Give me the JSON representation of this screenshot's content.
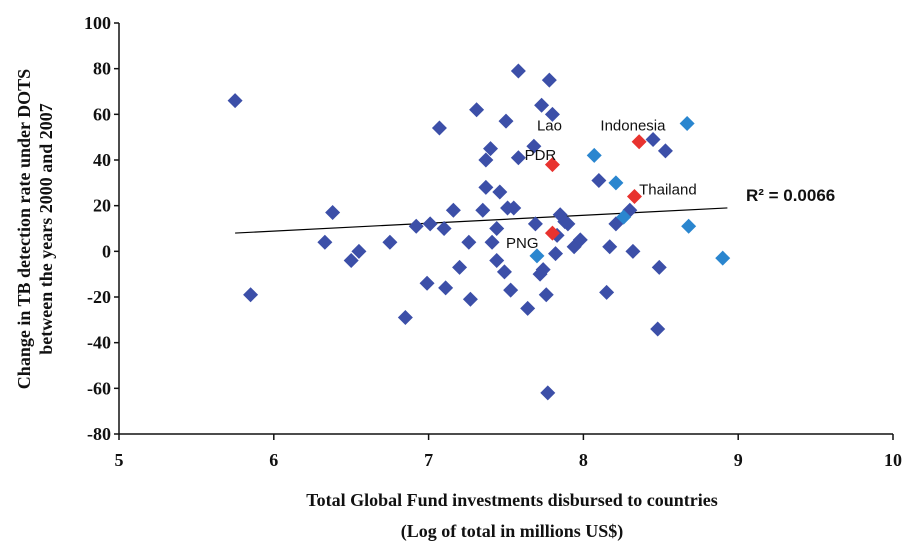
{
  "chart_data": {
    "type": "scatter",
    "xlabel_line1": "Total Global Fund investments disbursed to countries",
    "xlabel_line2": "(Log of total in millions US$)",
    "ylabel_line1": "Change in TB detection rate under DOTS",
    "ylabel_line2": "between the years 2000 and 2007",
    "xlim": [
      5,
      10
    ],
    "ylim": [
      -80,
      100
    ],
    "x_ticks": [
      "5",
      "6",
      "7",
      "8",
      "9",
      "10"
    ],
    "y_ticks": [
      "100",
      "80",
      "60",
      "40",
      "20",
      "0",
      "-20",
      "-40",
      "-60",
      "-80"
    ],
    "grid": false,
    "colors": {
      "points": "#3c4fa8",
      "light_points": "#2a86cf",
      "highlight": "#e8332f",
      "trendline": "#000000"
    },
    "series": [
      {
        "points": [
          [
            5.75,
            66
          ],
          [
            5.85,
            -19
          ],
          [
            6.33,
            4
          ],
          [
            6.38,
            17
          ],
          [
            6.5,
            -4
          ],
          [
            6.55,
            0
          ],
          [
            6.75,
            4
          ],
          [
            6.85,
            -29
          ],
          [
            6.92,
            11
          ],
          [
            6.99,
            -14
          ],
          [
            7.01,
            12
          ],
          [
            7.07,
            54
          ],
          [
            7.11,
            -16
          ],
          [
            7.1,
            10
          ],
          [
            7.16,
            18
          ],
          [
            7.2,
            -7
          ],
          [
            7.26,
            4
          ],
          [
            7.27,
            -21
          ],
          [
            7.31,
            62
          ],
          [
            7.35,
            18
          ],
          [
            7.37,
            28
          ],
          [
            7.37,
            40
          ],
          [
            7.4,
            45
          ],
          [
            7.41,
            4
          ],
          [
            7.44,
            10
          ],
          [
            7.44,
            -4
          ],
          [
            7.46,
            26
          ],
          [
            7.49,
            -9
          ],
          [
            7.5,
            57
          ],
          [
            7.51,
            19
          ],
          [
            7.53,
            -17
          ],
          [
            7.55,
            19
          ],
          [
            7.58,
            79
          ],
          [
            7.58,
            41
          ],
          [
            7.64,
            -25
          ],
          [
            7.68,
            46
          ],
          [
            7.69,
            12
          ],
          [
            7.72,
            -10
          ],
          [
            7.73,
            64
          ],
          [
            7.74,
            -8
          ],
          [
            7.76,
            -19
          ],
          [
            7.78,
            75
          ],
          [
            7.77,
            -62
          ],
          [
            7.8,
            60
          ],
          [
            7.82,
            -1
          ],
          [
            7.83,
            7
          ],
          [
            7.85,
            16
          ],
          [
            7.88,
            13
          ],
          [
            7.9,
            12
          ],
          [
            7.94,
            2
          ],
          [
            7.98,
            5
          ],
          [
            8.1,
            31
          ],
          [
            8.15,
            -18
          ],
          [
            8.17,
            2
          ],
          [
            8.21,
            12
          ],
          [
            8.3,
            18
          ],
          [
            8.32,
            0
          ],
          [
            8.45,
            49
          ],
          [
            8.48,
            -34
          ],
          [
            8.49,
            -7
          ],
          [
            8.53,
            44
          ]
        ]
      },
      {
        "points": [
          [
            7.7,
            -2
          ],
          [
            8.07,
            42
          ],
          [
            8.21,
            30
          ],
          [
            8.26,
            15
          ],
          [
            8.67,
            56
          ],
          [
            8.68,
            11
          ],
          [
            8.9,
            -3
          ]
        ]
      },
      {
        "points": [
          [
            7.8,
            38
          ],
          [
            8.36,
            48
          ],
          [
            8.33,
            24
          ],
          [
            7.8,
            8
          ]
        ]
      }
    ],
    "trendline": {
      "x": [
        5.75,
        8.93
      ],
      "y": [
        8,
        19
      ]
    },
    "annotations": [
      {
        "text": "Lao",
        "x": 7.7,
        "y": 53
      },
      {
        "text": "PDR",
        "x": 7.62,
        "y": 40
      },
      {
        "text": "Indonesia",
        "x": 8.11,
        "y": 53
      },
      {
        "text": "Thailand",
        "x": 8.36,
        "y": 25
      },
      {
        "text": "PNG",
        "x": 7.5,
        "y": 1.5
      }
    ],
    "r2_label": "R² = 0.0066",
    "r2_position": {
      "x": 9.05,
      "y": 22
    }
  }
}
